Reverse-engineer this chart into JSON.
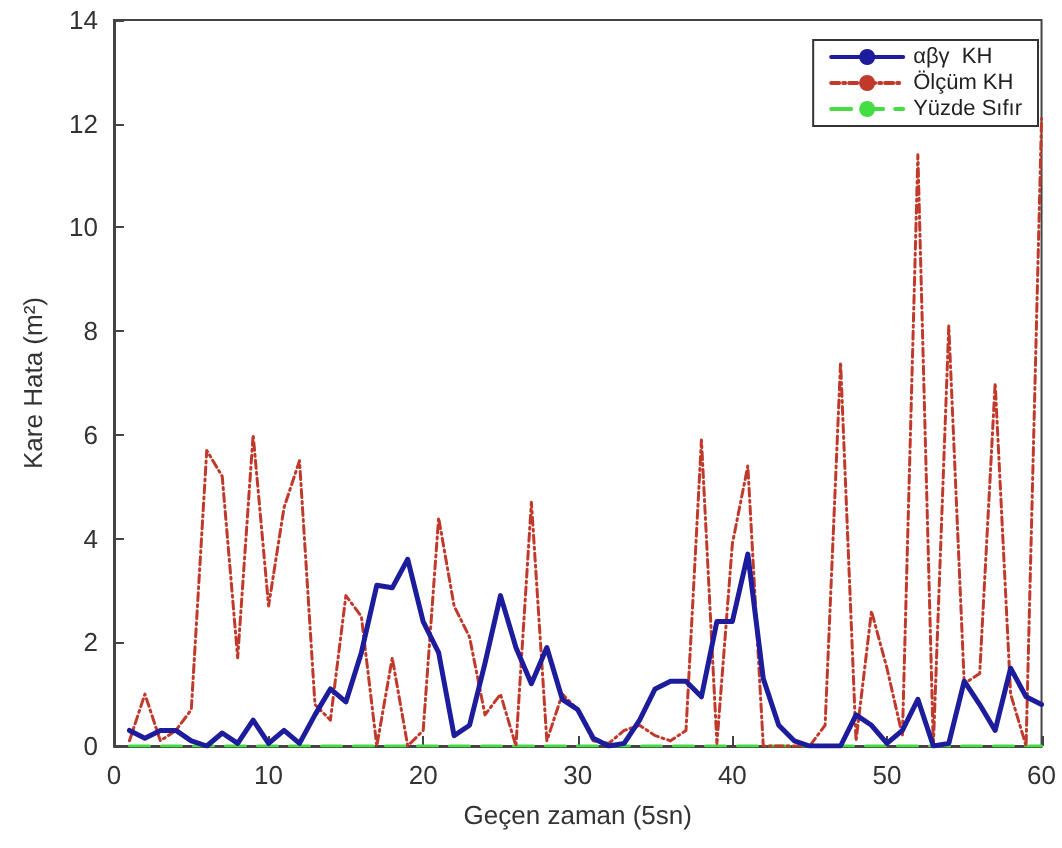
{
  "chart_data": {
    "type": "line",
    "xlabel": "Geçen zaman (5sn)",
    "ylabel": "Kare Hata (m²)",
    "x": [
      1,
      2,
      3,
      4,
      5,
      6,
      7,
      8,
      9,
      10,
      11,
      12,
      13,
      14,
      15,
      16,
      17,
      18,
      19,
      20,
      21,
      22,
      23,
      24,
      25,
      26,
      27,
      28,
      29,
      30,
      31,
      32,
      33,
      34,
      35,
      36,
      37,
      38,
      39,
      40,
      41,
      42,
      43,
      44,
      45,
      46,
      47,
      48,
      49,
      50,
      51,
      52,
      53,
      54,
      55,
      56,
      57,
      58,
      59,
      60
    ],
    "series": [
      {
        "name": "αβγ  KH",
        "color": "#1c1c9c",
        "line_style": "solid",
        "values": [
          0.3,
          0.15,
          0.3,
          0.3,
          0.1,
          0,
          0.25,
          0.05,
          0.5,
          0.05,
          0.3,
          0.05,
          0.6,
          1.1,
          0.85,
          1.8,
          3.1,
          3.05,
          3.6,
          2.4,
          1.8,
          0.2,
          0.4,
          1.6,
          2.9,
          1.9,
          1.2,
          1.9,
          0.9,
          0.7,
          0.15,
          0,
          0.05,
          0.5,
          1.1,
          1.25,
          1.25,
          0.95,
          2.4,
          2.4,
          3.7,
          1.3,
          0.4,
          0.1,
          0,
          0,
          0,
          0.6,
          0.4,
          0.05,
          0.3,
          0.9,
          0,
          0.05,
          1.25,
          0.8,
          0.3,
          1.5,
          0.95,
          0.8
        ]
      },
      {
        "name": "Ölçüm KH",
        "color": "#c0392b",
        "line_style": "dotted",
        "values": [
          0.1,
          1.0,
          0.1,
          0.3,
          0.7,
          5.7,
          5.2,
          1.7,
          6.0,
          2.7,
          4.6,
          5.5,
          0.8,
          0.5,
          2.9,
          2.5,
          0,
          1.7,
          0,
          0.3,
          4.4,
          2.7,
          2.1,
          0.6,
          1.0,
          0,
          4.7,
          0.1,
          1.0,
          0.7,
          0.1,
          0.05,
          0.3,
          0.4,
          0.2,
          0.1,
          0.3,
          5.9,
          0.05,
          3.9,
          5.4,
          0,
          0,
          0,
          0,
          0.4,
          7.4,
          0.1,
          2.6,
          1.5,
          0.2,
          11.4,
          0,
          8.1,
          1.2,
          1.4,
          7.0,
          1.0,
          0,
          12.1
        ]
      },
      {
        "name": "Yüzde Sıfır",
        "color": "#44dd44",
        "line_style": "dashed",
        "values": [
          0,
          0,
          0,
          0,
          0,
          0,
          0,
          0,
          0,
          0,
          0,
          0,
          0,
          0,
          0,
          0,
          0,
          0,
          0,
          0,
          0,
          0,
          0,
          0,
          0,
          0,
          0,
          0,
          0,
          0,
          0,
          0,
          0,
          0,
          0,
          0,
          0,
          0,
          0,
          0,
          0,
          0,
          0,
          0,
          0,
          0,
          0,
          0,
          0,
          0,
          0,
          0,
          0,
          0,
          0,
          0,
          0,
          0,
          0,
          0
        ]
      }
    ],
    "xlim": [
      0,
      60
    ],
    "xticks": [
      0,
      10,
      20,
      30,
      40,
      50,
      60
    ],
    "ylim": [
      0,
      14
    ],
    "yticks": [
      0,
      2,
      4,
      6,
      8,
      10,
      12,
      14
    ],
    "grid": false,
    "legend": "top right",
    "marker": "none"
  }
}
